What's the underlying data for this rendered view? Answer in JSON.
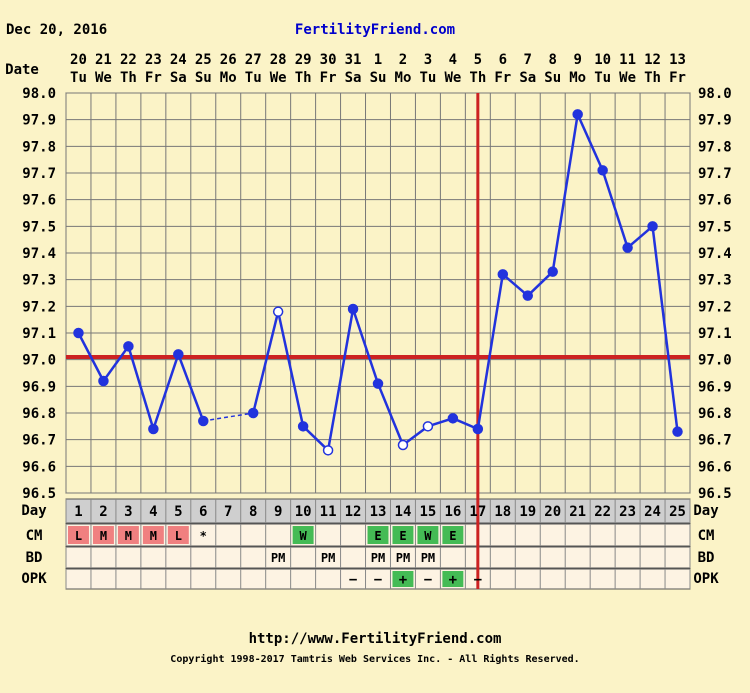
{
  "header": {
    "date": "Dec 20, 2016",
    "site": "FertilityFriend.com"
  },
  "footer": {
    "url": "http://www.FertilityFriend.com",
    "copyright": "Copyright 1998-2017 Tamtris Web Services Inc. - All Rights Reserved."
  },
  "row_labels": {
    "date": "Date",
    "day": "Day",
    "cm": "CM",
    "bd": "BD",
    "opk": "OPK"
  },
  "colors": {
    "line": "#2233dd",
    "coverline": "#cc2222",
    "ovulation": "#cc2222",
    "cm_menses": "#f08080",
    "cm_fertile": "#44bb55",
    "opk_positive": "#44bb55",
    "grid": "#777777"
  },
  "chart_data": {
    "type": "line",
    "title": "",
    "xlabel": "",
    "ylabel": "",
    "ylim": [
      96.5,
      98.0
    ],
    "y_ticks": [
      "98.0",
      "97.9",
      "97.8",
      "97.7",
      "97.6",
      "97.5",
      "97.4",
      "97.3",
      "97.2",
      "97.1",
      "97.0",
      "96.9",
      "96.8",
      "96.7",
      "96.6",
      "96.5"
    ],
    "dates": [
      "20",
      "21",
      "22",
      "23",
      "24",
      "25",
      "26",
      "27",
      "28",
      "29",
      "30",
      "31",
      "1",
      "2",
      "3",
      "4",
      "5",
      "6",
      "7",
      "8",
      "9",
      "10",
      "11",
      "12",
      "13"
    ],
    "weekdays": [
      "Tu",
      "We",
      "Th",
      "Fr",
      "Sa",
      "Su",
      "Mo",
      "Tu",
      "We",
      "Th",
      "Fr",
      "Sa",
      "Su",
      "Mo",
      "Tu",
      "We",
      "Th",
      "Fr",
      "Sa",
      "Su",
      "Mo",
      "Tu",
      "We",
      "Th",
      "Fr"
    ],
    "cycle_days": [
      "1",
      "2",
      "3",
      "4",
      "5",
      "6",
      "7",
      "8",
      "9",
      "10",
      "11",
      "12",
      "13",
      "14",
      "15",
      "16",
      "17",
      "18",
      "19",
      "20",
      "21",
      "22",
      "23",
      "24",
      "25"
    ],
    "series": [
      {
        "values": [
          97.1,
          96.92,
          97.05,
          96.74,
          97.02,
          96.77,
          null,
          96.8,
          97.18,
          96.75,
          96.66,
          97.19,
          96.91,
          96.68,
          96.75,
          96.78,
          96.74,
          97.32,
          97.24,
          97.33,
          97.92,
          97.71,
          97.42,
          97.5,
          96.73
        ],
        "open": [
          false,
          false,
          false,
          false,
          false,
          false,
          false,
          false,
          true,
          false,
          true,
          false,
          false,
          true,
          true,
          false,
          false,
          false,
          false,
          false,
          false,
          false,
          false,
          false,
          false
        ]
      }
    ],
    "coverline": 97.01,
    "ovulation_day": "17",
    "cm": [
      "L",
      "M",
      "M",
      "M",
      "L",
      "*",
      "",
      "",
      "",
      "W",
      "",
      "",
      "E",
      "E",
      "W",
      "E",
      "",
      "",
      "",
      "",
      "",
      "",
      "",
      "",
      ""
    ],
    "cm_kind": [
      "menses",
      "menses",
      "menses",
      "menses",
      "menses",
      "none",
      "",
      "",
      "",
      "fertile",
      "",
      "",
      "fertile",
      "fertile",
      "fertile",
      "fertile",
      "",
      "",
      "",
      "",
      "",
      "",
      "",
      "",
      ""
    ],
    "bd": [
      "",
      "",
      "",
      "",
      "",
      "",
      "",
      "",
      "PM",
      "",
      "PM",
      "",
      "PM",
      "PM",
      "PM",
      "",
      "",
      "",
      "",
      "",
      "",
      "",
      "",
      "",
      ""
    ],
    "opk": [
      "",
      "",
      "",
      "",
      "",
      "",
      "",
      "",
      "",
      "",
      "",
      "−",
      "−",
      "+",
      "−",
      "+",
      "−",
      "",
      "",
      "",
      "",
      "",
      "",
      "",
      ""
    ]
  }
}
